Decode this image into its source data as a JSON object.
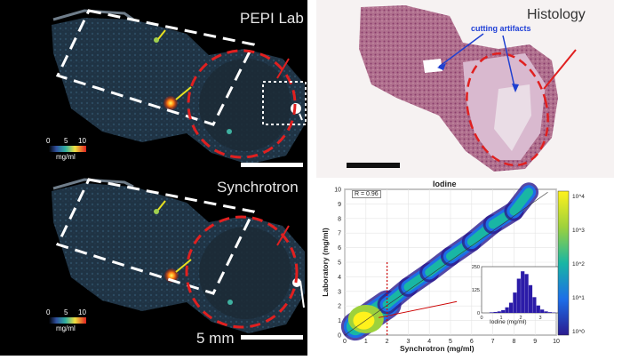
{
  "panels": {
    "pepi_label": "PEPI Lab",
    "synchrotron_label": "Synchrotron",
    "histology_label": "Histology",
    "cutting_artifacts": "cutting artifacts",
    "scale_label": "5 mm",
    "colorbar": {
      "ticks": [
        "0",
        "5",
        "10"
      ],
      "unit": "mg/ml"
    }
  },
  "chart_data": [
    {
      "type": "heatmap",
      "title": "Iodine",
      "xlabel": "Synchrotron (mg/ml)",
      "ylabel": "Laboratory (mg/ml)",
      "xlim": [
        0,
        10
      ],
      "ylim": [
        0,
        10
      ],
      "x_ticks": [
        "0",
        "1",
        "2",
        "3",
        "4",
        "5",
        "6",
        "7",
        "8",
        "9",
        "10"
      ],
      "y_ticks": [
        "0",
        "1",
        "2",
        "3",
        "4",
        "5",
        "6",
        "7",
        "8",
        "9",
        "10"
      ],
      "annotation": "R = 0.96",
      "threshold_x": 2,
      "density_band": [
        [
          0.5,
          0.6
        ],
        [
          1,
          1.1
        ],
        [
          2,
          2.1
        ],
        [
          3,
          3.3
        ],
        [
          4,
          4.3
        ],
        [
          5,
          5.4
        ],
        [
          6,
          6.4
        ],
        [
          7,
          7.6
        ],
        [
          8,
          8.5
        ],
        [
          8.7,
          9.8
        ]
      ],
      "colorbar": {
        "scale": "log",
        "ticks": [
          "10^4",
          "10^3",
          "10^2",
          "10^1",
          "10^0"
        ]
      }
    },
    {
      "type": "bar",
      "title": "",
      "xlabel": "Iodine (mg/ml)",
      "ylabel": "",
      "xlim": [
        0,
        4
      ],
      "ylim": [
        0,
        250
      ],
      "x_ticks": [
        "0",
        "1",
        "2",
        "3",
        "4"
      ],
      "y_ticks": [
        "0",
        "125",
        "250"
      ],
      "bins": [
        0.5,
        0.7,
        0.9,
        1.1,
        1.3,
        1.5,
        1.7,
        1.9,
        2.1,
        2.3,
        2.5,
        2.7,
        2.9,
        3.1,
        3.3,
        3.5,
        3.7
      ],
      "values": [
        3,
        5,
        8,
        15,
        30,
        55,
        110,
        185,
        225,
        210,
        150,
        85,
        40,
        18,
        8,
        4,
        2
      ]
    }
  ]
}
